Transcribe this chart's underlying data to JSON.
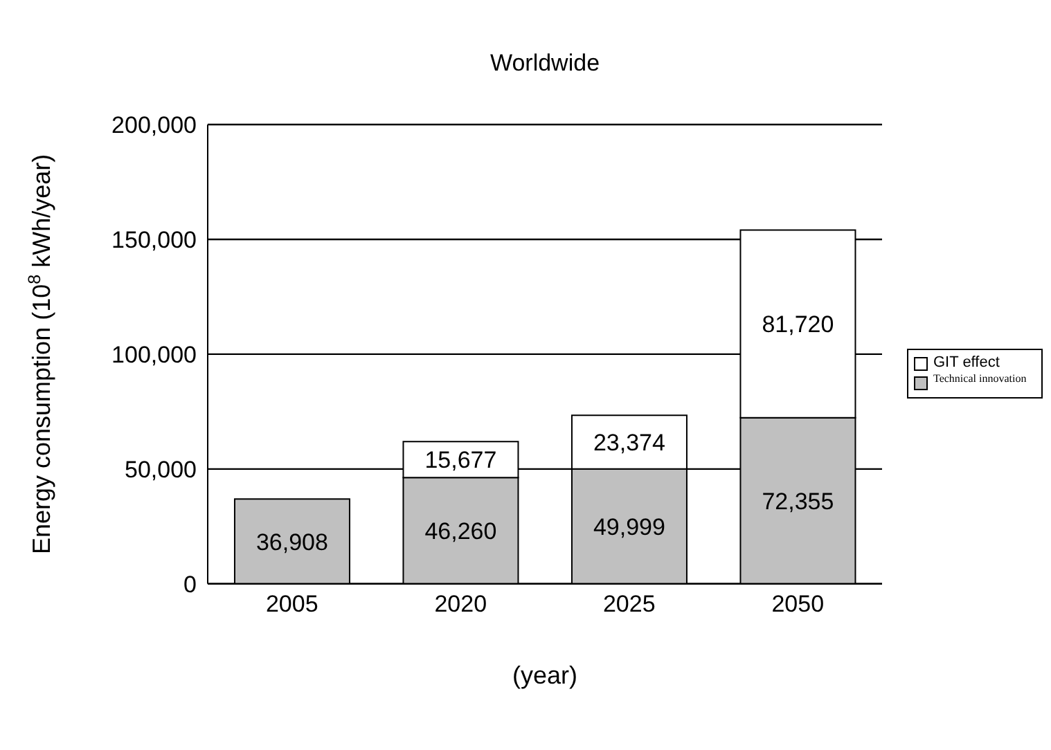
{
  "chart_data": {
    "type": "bar",
    "title": "Worldwide",
    "xlabel": "(year)",
    "ylabel": "Energy consumption (10$^{8}$ kWh/year)",
    "categories": [
      "2005",
      "2020",
      "2025",
      "2050"
    ],
    "stacked": true,
    "series": [
      {
        "name": "Technical innovation",
        "color": "#c0c0c0",
        "values": [
          36908,
          46260,
          49999,
          72355
        ],
        "value_labels": [
          "36,908",
          "46,260",
          "49,999",
          "72,355"
        ]
      },
      {
        "name": "GIT effect",
        "color": "#ffffff",
        "values": [
          null,
          15677,
          23374,
          81720
        ],
        "value_labels": [
          null,
          "15,677",
          "23,374",
          "81,720"
        ]
      }
    ],
    "ylim": [
      0,
      200000
    ],
    "yticks": [
      {
        "value": 0,
        "label": "0"
      },
      {
        "value": 50000,
        "label": "50,000"
      },
      {
        "value": 100000,
        "label": "100,000"
      },
      {
        "value": 150000,
        "label": "150,000"
      },
      {
        "value": 200000,
        "label": "200,000"
      }
    ],
    "grid": "y",
    "legend": "right"
  }
}
